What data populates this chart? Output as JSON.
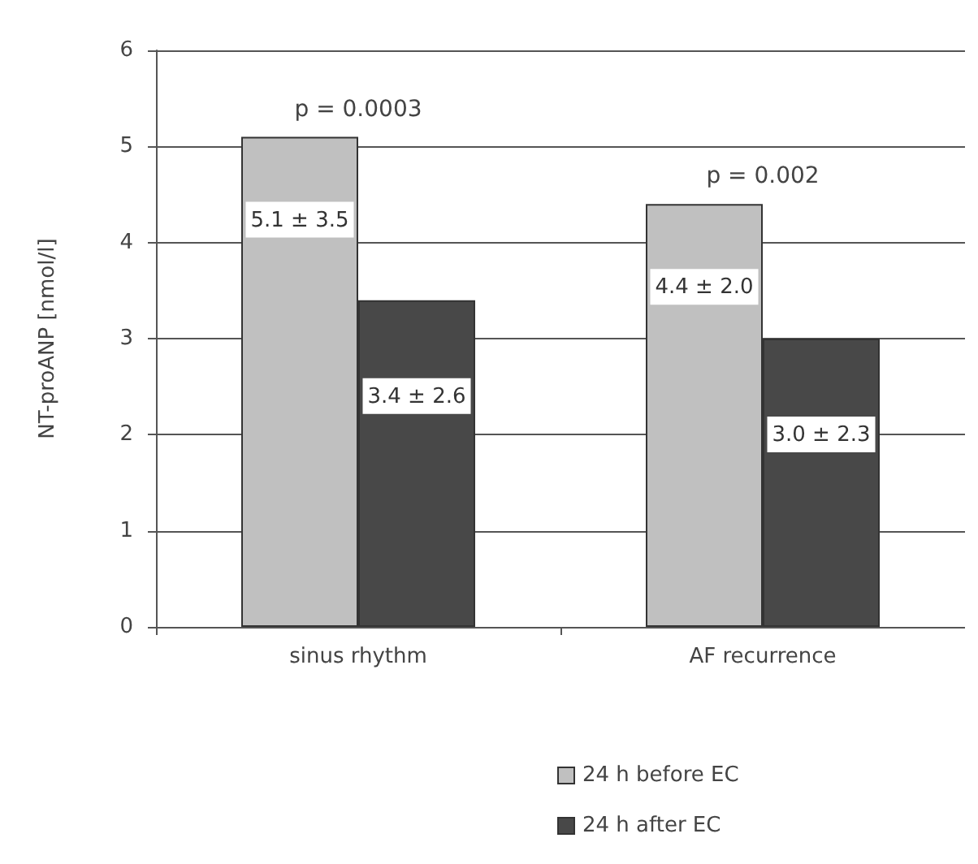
{
  "chart_data": {
    "type": "bar",
    "ylabel": "NT-proANP [nmol/l]",
    "categories": [
      "sinus rhythm",
      "AF recurrence"
    ],
    "series": [
      {
        "name": "24 h before EC",
        "color": "#c0c0c0",
        "values": [
          5.1,
          4.4
        ],
        "value_labels": [
          "5.1 ± 3.5",
          "4.4 ± 2.0"
        ]
      },
      {
        "name": "24 h after EC",
        "color": "#484848",
        "values": [
          3.4,
          3.0
        ],
        "value_labels": [
          "3.4 ± 2.6",
          "3.0 ± 2.3"
        ]
      }
    ],
    "annotations": [
      "p = 0.0003",
      "p = 0.002"
    ],
    "ylim": [
      0,
      6
    ],
    "yticks": [
      0,
      1,
      2,
      3,
      4,
      5,
      6
    ],
    "grid": "y",
    "legend": "bottom"
  }
}
